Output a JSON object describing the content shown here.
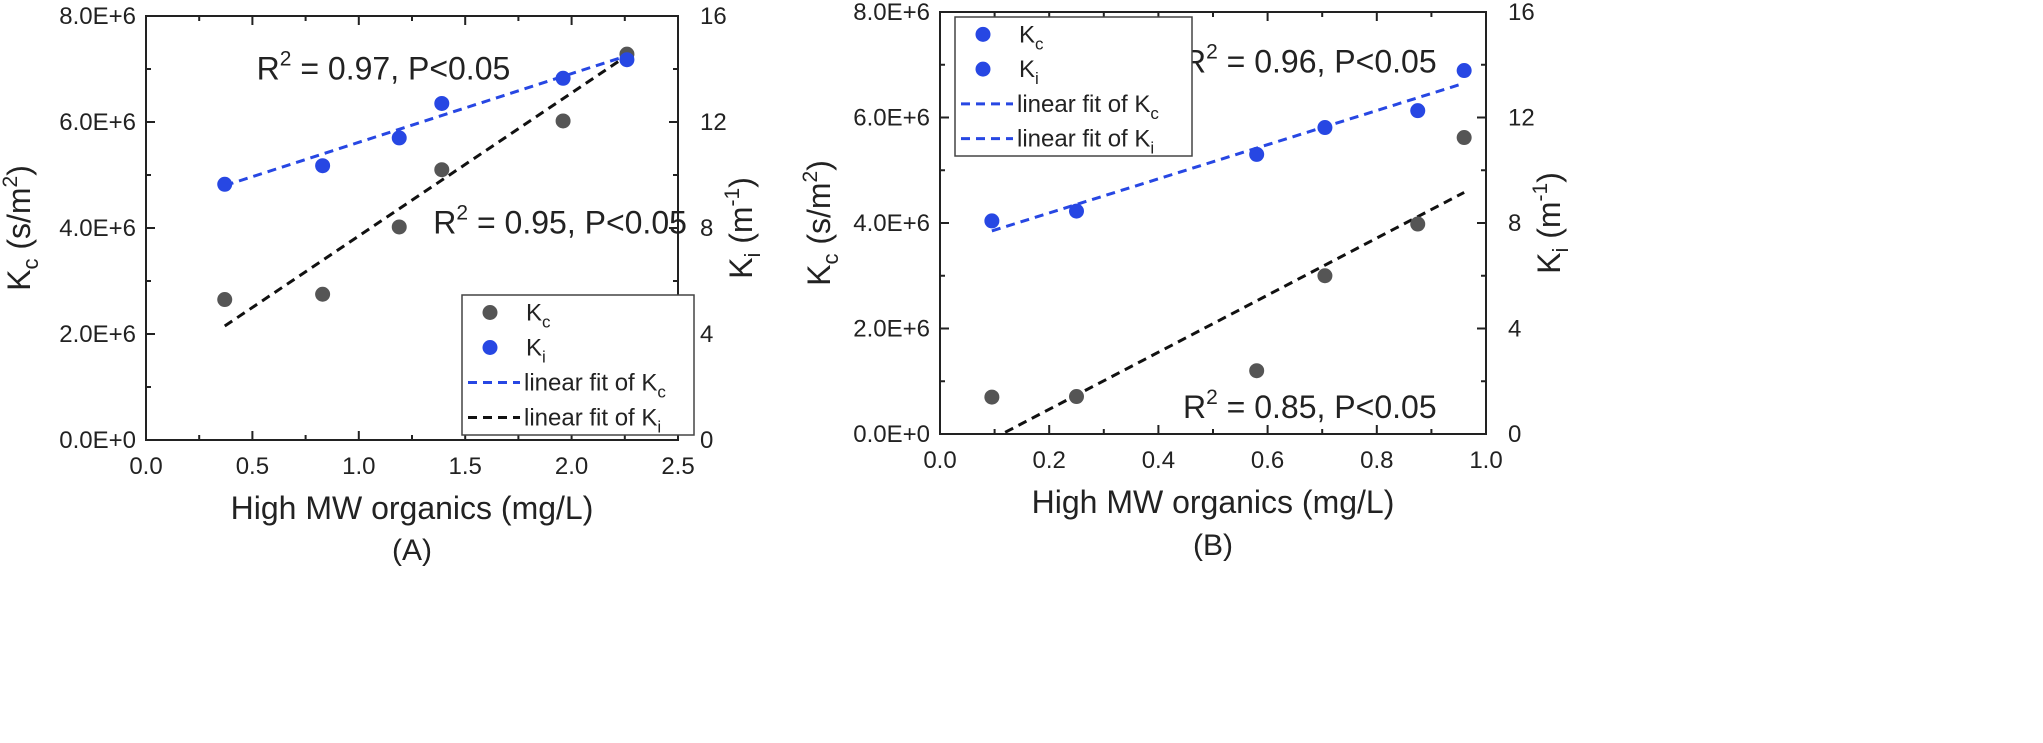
{
  "colors": {
    "kc": "#555555",
    "ki": "#2747e3",
    "fit_kc": "#2747e3",
    "fit_ki": "#111111",
    "axis": "#222222"
  },
  "chart_data": [
    {
      "type": "scatter",
      "panel_label": "(A)",
      "xlabel": "High MW organics (mg/L)",
      "ylabel": {
        "main": "K",
        "sub": "c",
        "unit": " (s/m",
        "sup": "2",
        "close": ")"
      },
      "y2label": {
        "main": "K",
        "sub": "i",
        "unit": " (m",
        "sup": "-1",
        "close": ")"
      },
      "xlim": [
        0,
        2.5
      ],
      "ylim": [
        0,
        8000000
      ],
      "y2lim": [
        0,
        16
      ],
      "xticks": [
        0,
        0.5,
        1,
        1.5,
        2,
        2.5
      ],
      "xtick_labels": [
        "0.0",
        "0.5",
        "1.0",
        "1.5",
        "2.0",
        "2.5"
      ],
      "yticks": [
        0,
        2000000,
        4000000,
        6000000,
        8000000
      ],
      "ytick_labels": [
        "0.0E+0",
        "2.0E+6",
        "4.0E+6",
        "6.0E+6",
        "8.0E+6"
      ],
      "y2ticks": [
        0,
        4,
        8,
        12,
        16
      ],
      "y2tick_labels": [
        "0",
        "4",
        "8",
        "12",
        "16"
      ],
      "series": [
        {
          "name": "Kc",
          "axis": "left",
          "x": [
            0.37,
            0.83,
            1.19,
            1.39,
            1.96,
            2.26
          ],
          "y": [
            2650000,
            2750000,
            4020000,
            5100000,
            6020000,
            7280000
          ]
        },
        {
          "name": "Ki",
          "axis": "right",
          "x": [
            0.37,
            0.83,
            1.19,
            1.39,
            1.96,
            2.26
          ],
          "y": [
            9.65,
            10.35,
            11.4,
            12.7,
            13.65,
            14.35
          ]
        }
      ],
      "fits": [
        {
          "name": "linear fit of Kc",
          "axis": "right",
          "x": [
            0.37,
            2.26
          ],
          "y": [
            9.6,
            14.5
          ]
        },
        {
          "name": "linear fit of Ki",
          "axis": "left",
          "x": [
            0.37,
            2.26
          ],
          "y": [
            2150000,
            7250000
          ]
        }
      ],
      "annotations": [
        {
          "text": "R",
          "sup": "2",
          "rest": " = 0.97, P<0.05",
          "x": 0.52,
          "y": 6.8
        },
        {
          "text": "R",
          "sup": "2",
          "rest": " = 0.95, P<0.05",
          "x": 1.35,
          "y": 3.9
        }
      ],
      "legend": {
        "placement": "bottom-right",
        "entries": [
          {
            "label": "K",
            "sub": "c",
            "style": "marker-kc"
          },
          {
            "label": "K",
            "sub": "i",
            "style": "marker-ki"
          },
          {
            "label": "linear fit of K",
            "sub": "c",
            "style": "line-blue"
          },
          {
            "label": "linear fit of K",
            "sub": "i",
            "style": "line-black"
          }
        ]
      }
    },
    {
      "type": "scatter",
      "panel_label": "(B)",
      "xlabel": "High MW organics (mg/L)",
      "ylabel": {
        "main": "K",
        "sub": "c",
        "unit": " (s/m",
        "sup": "2",
        "close": ")"
      },
      "y2label": {
        "main": "K",
        "sub": "i",
        "unit": " (m",
        "sup": "-1",
        "close": ")"
      },
      "xlim": [
        0,
        1.0
      ],
      "ylim": [
        0,
        8000000
      ],
      "y2lim": [
        0,
        16
      ],
      "xticks": [
        0,
        0.2,
        0.4,
        0.6,
        0.8,
        1.0
      ],
      "xtick_labels": [
        "0.0",
        "0.2",
        "0.4",
        "0.6",
        "0.8",
        "1.0"
      ],
      "yticks": [
        0,
        2000000,
        4000000,
        6000000,
        8000000
      ],
      "ytick_labels": [
        "0.0E+0",
        "2.0E+6",
        "4.0E+6",
        "6.0E+6",
        "8.0E+6"
      ],
      "y2ticks": [
        0,
        4,
        8,
        12,
        16
      ],
      "y2tick_labels": [
        "0",
        "4",
        "8",
        "12",
        "16"
      ],
      "series": [
        {
          "name": "Kc",
          "axis": "left",
          "x": [
            0.095,
            0.25,
            0.58,
            0.705,
            0.875,
            0.96
          ],
          "y": [
            700000,
            710000,
            1200000,
            3000000,
            3980000,
            5620000
          ]
        },
        {
          "name": "Ki",
          "axis": "right",
          "x": [
            0.095,
            0.25,
            0.58,
            0.705,
            0.875,
            0.96
          ],
          "y": [
            8.08,
            8.45,
            10.6,
            11.62,
            12.26,
            13.78
          ]
        }
      ],
      "fits": [
        {
          "name": "linear fit of Kc",
          "axis": "right",
          "x": [
            0.095,
            0.96
          ],
          "y": [
            7.7,
            13.3
          ]
        },
        {
          "name": "linear fit of Ki",
          "axis": "left",
          "x": [
            0.095,
            0.96
          ],
          "y": [
            -100000,
            4580000
          ]
        }
      ],
      "annotations": [
        {
          "text": "R",
          "sup": "2",
          "rest": " = 0.96, P<0.05",
          "x": 0.445,
          "y": 6.85
        },
        {
          "text": "R",
          "sup": "2",
          "rest": " = 0.85, P<0.05",
          "x": 0.445,
          "y": 0.3
        }
      ],
      "legend": {
        "placement": "top-left",
        "entries": [
          {
            "label": "K",
            "sub": "c",
            "style": "marker-ki"
          },
          {
            "label": "K",
            "sub": "i",
            "style": "marker-ki"
          },
          {
            "label": "linear fit of K",
            "sub": "c",
            "style": "line-blue"
          },
          {
            "label": "linear fit of K",
            "sub": "i",
            "style": "line-blue"
          }
        ]
      }
    }
  ]
}
